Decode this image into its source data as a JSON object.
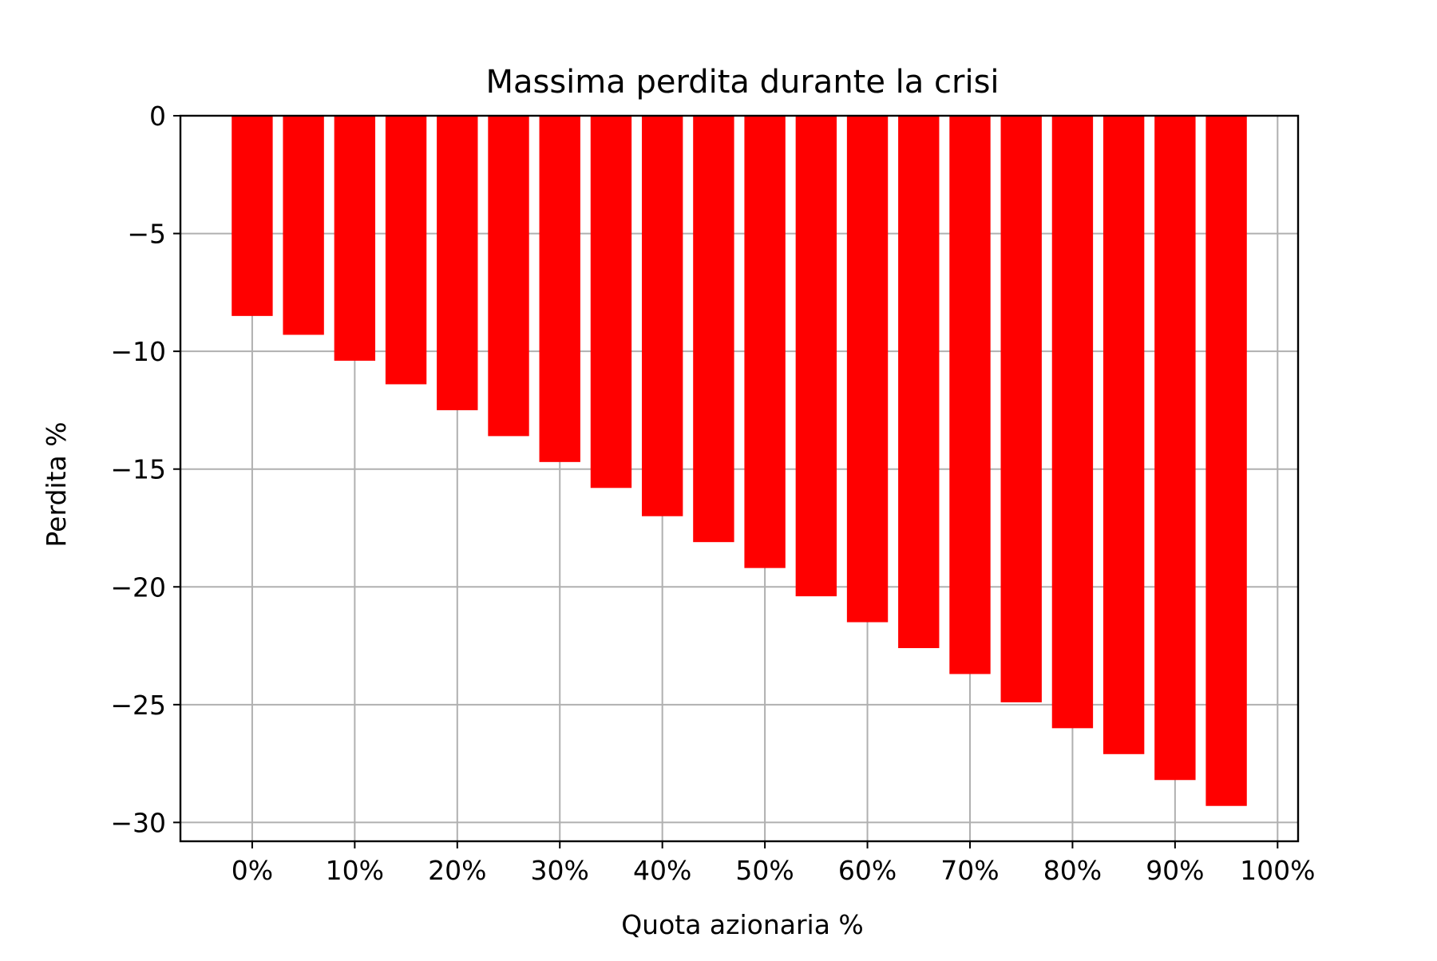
{
  "chart_data": {
    "type": "bar",
    "title": "Massima perdita durante la crisi",
    "xlabel": "Quota azionaria %",
    "ylabel": "Perdita %",
    "x": [
      0,
      5,
      10,
      15,
      20,
      25,
      30,
      35,
      40,
      45,
      50,
      55,
      60,
      65,
      70,
      75,
      80,
      85,
      90,
      95
    ],
    "values": [
      -8.5,
      -9.3,
      -10.4,
      -11.4,
      -12.5,
      -13.6,
      -14.7,
      -15.8,
      -17.0,
      -18.1,
      -19.2,
      -20.4,
      -21.5,
      -22.6,
      -23.7,
      -24.9,
      -26.0,
      -27.1,
      -28.2,
      -29.3
    ],
    "bar_width": 4,
    "xlim": [
      -7,
      102
    ],
    "ylim": [
      -30.8,
      0
    ],
    "x_ticks": [
      0,
      10,
      20,
      30,
      40,
      50,
      60,
      70,
      80,
      90,
      100
    ],
    "x_tick_labels": [
      "0%",
      "10%",
      "20%",
      "30%",
      "40%",
      "50%",
      "60%",
      "70%",
      "80%",
      "90%",
      "100%"
    ],
    "y_ticks": [
      0,
      -5,
      -10,
      -15,
      -20,
      -25,
      -30
    ],
    "y_tick_labels": [
      "0",
      "−5",
      "−10",
      "−15",
      "−20",
      "−25",
      "−30"
    ],
    "grid": true,
    "bar_color": "#ff0000",
    "grid_color": "#b0b0b0"
  }
}
